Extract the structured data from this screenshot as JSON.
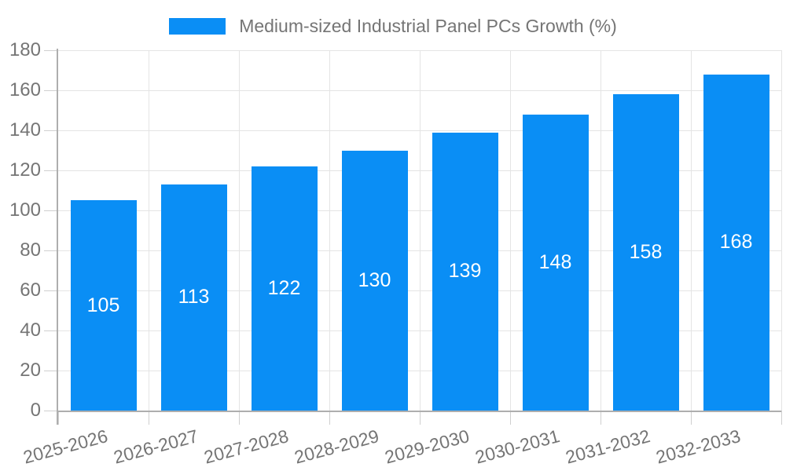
{
  "legend": {
    "series_label": "Medium-sized Industrial Panel PCs Growth (%)"
  },
  "chart_data": {
    "type": "bar",
    "title": "Medium-sized Industrial Panel PCs Growth (%)",
    "categories": [
      "2025-2026",
      "2026-2027",
      "2027-2028",
      "2028-2029",
      "2029-2030",
      "2030-2031",
      "2031-2032",
      "2032-2033"
    ],
    "values": [
      105,
      113,
      122,
      130,
      139,
      148,
      158,
      168
    ],
    "xlabel": "",
    "ylabel": "",
    "ylim": [
      0,
      180
    ],
    "yticks": [
      0,
      20,
      40,
      60,
      80,
      100,
      120,
      140,
      160,
      180
    ],
    "grid": "horizontal-and-vertical",
    "legend_position": "top-center",
    "bar_labels_inside": true,
    "x_label_rotation_deg": -15,
    "colors": {
      "bar": "#0a8ef5",
      "bar_label": "#ffffff",
      "axis_text": "#757575",
      "legend_text": "#757575",
      "grid_line": "#e4e4e4",
      "tick_line": "#cfcfcf",
      "axis_line": "#aeaeae",
      "background": "#ffffff"
    }
  }
}
